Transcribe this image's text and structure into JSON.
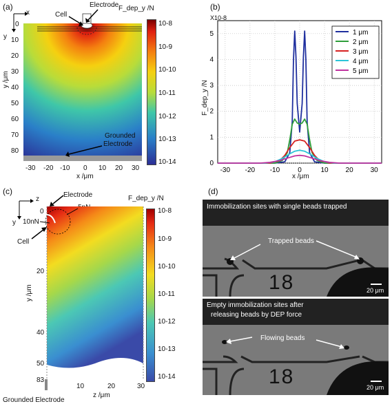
{
  "panel_a": {
    "label": "(a)",
    "axis_x_arrow": "x",
    "axis_y_arrow": "y",
    "cell_label": "Cell",
    "electrode_label": "Electrode",
    "cbar_title": "F_dep_y /N",
    "cbar_ticks": [
      "10-8",
      "10-9",
      "10-10",
      "10-11",
      "10-12",
      "10-13",
      "10-14"
    ],
    "xlabel": "x /μm",
    "ylabel": "y /μm",
    "xticks": [
      "-30",
      "-20",
      "-10",
      "0",
      "10",
      "20",
      "30"
    ],
    "yticks": [
      "0",
      "10",
      "20",
      "30",
      "40",
      "50",
      "60",
      "70",
      "80"
    ],
    "grounded_label_1": "Grounded",
    "grounded_label_2": "Electrode"
  },
  "panel_b": {
    "label": "(b)",
    "exp_label": "X10-8",
    "xlabel": "x /μm",
    "ylabel": "F_dep_y /N",
    "xticks": [
      "-30",
      "-20",
      "-10",
      "0",
      "10",
      "20",
      "30"
    ],
    "yticks": [
      "0",
      "1",
      "2",
      "3",
      "4",
      "5"
    ]
  },
  "chart_data": {
    "type": "line",
    "xlabel": "x /μm",
    "ylabel": "F_dep_y /N",
    "xlim": [
      -33,
      33
    ],
    "ylim": [
      0,
      5.5
    ],
    "y_multiplier": "X10-8",
    "grid": true,
    "legend": "top-right",
    "series": [
      {
        "name": "1 μm",
        "color": "#1f2f9e",
        "x": [
          -33,
          -10,
          -6,
          -4,
          -3,
          -2.5,
          -2,
          -1.5,
          -1,
          0,
          1,
          1.5,
          2,
          2.5,
          3,
          4,
          6,
          10,
          33
        ],
        "y": [
          0,
          0,
          0.05,
          0.4,
          1.6,
          4.0,
          5.1,
          4.1,
          2.3,
          1.2,
          2.3,
          4.1,
          5.1,
          4.0,
          1.6,
          0.4,
          0.05,
          0,
          0
        ]
      },
      {
        "name": "2 μm",
        "color": "#2e9e3a",
        "x": [
          -33,
          -10,
          -7,
          -5,
          -4,
          -3,
          -2,
          -1,
          0,
          1,
          2,
          3,
          4,
          5,
          7,
          10,
          33
        ],
        "y": [
          0,
          0,
          0.1,
          0.4,
          0.9,
          1.5,
          1.7,
          1.55,
          1.5,
          1.55,
          1.7,
          1.5,
          0.9,
          0.4,
          0.1,
          0,
          0
        ]
      },
      {
        "name": "3 μm",
        "color": "#d62020",
        "x": [
          -33,
          -12,
          -8,
          -6,
          -4,
          -2,
          0,
          2,
          4,
          6,
          8,
          12,
          33
        ],
        "y": [
          0,
          0,
          0.1,
          0.3,
          0.6,
          0.85,
          0.9,
          0.85,
          0.6,
          0.3,
          0.1,
          0,
          0
        ]
      },
      {
        "name": "4 μm",
        "color": "#2bc4d8",
        "x": [
          -33,
          -14,
          -10,
          -7,
          -4,
          -2,
          0,
          2,
          4,
          7,
          10,
          14,
          33
        ],
        "y": [
          0,
          0,
          0.05,
          0.18,
          0.36,
          0.46,
          0.5,
          0.46,
          0.36,
          0.18,
          0.05,
          0,
          0
        ]
      },
      {
        "name": "5 μm",
        "color": "#c0309e",
        "x": [
          -33,
          -16,
          -12,
          -8,
          -4,
          -2,
          0,
          2,
          4,
          8,
          12,
          16,
          33
        ],
        "y": [
          0,
          0,
          0.03,
          0.1,
          0.22,
          0.28,
          0.3,
          0.28,
          0.22,
          0.1,
          0.03,
          0,
          0
        ]
      }
    ]
  },
  "panel_c": {
    "label": "(c)",
    "axis_z_arrow": "z",
    "axis_y_arrow": "y",
    "electrode_label": "Electrode",
    "force_a": "5nN",
    "force_b": "10nN",
    "cell_label": "Cell",
    "cbar_title": "F_dep_y /N",
    "cbar_ticks": [
      "10-8",
      "10-9",
      "10-10",
      "10-11",
      "10-12",
      "10-13",
      "10-14"
    ],
    "xlabel": "z /μm",
    "ylabel": "y /μm",
    "xticks": [
      "10",
      "20",
      "30"
    ],
    "yticks": [
      "0",
      "20",
      "40",
      "50",
      "83"
    ],
    "grounded_label": "Grounded Electrode"
  },
  "panel_d": {
    "label": "(d)",
    "top_caption": "Immobilization sites with single beads trapped",
    "top_arrow_label": "Trapped beads",
    "top_number": "18",
    "top_scale": "20 μm",
    "bottom_caption_1": "Empty immobilization sites after",
    "bottom_caption_2": "releasing beads by DEP force",
    "bottom_arrow_label": "Flowing beads",
    "bottom_number": "18",
    "bottom_scale": "20 μm"
  }
}
